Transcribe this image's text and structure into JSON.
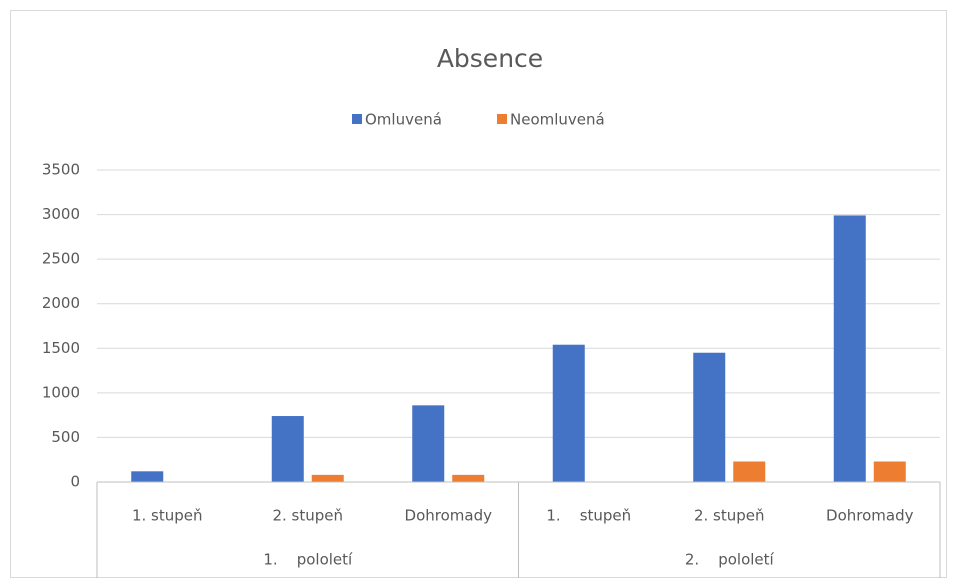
{
  "chart_data": {
    "type": "bar",
    "title": "Absence",
    "categories": [
      "1. stupeň",
      "2. stupeň",
      "Dohromady",
      "1.    stupeň",
      "2. stupeň",
      "Dohromady"
    ],
    "category_groups": [
      "1.    pololetí",
      "2.    pololetí"
    ],
    "series": [
      {
        "name": "Omluvená",
        "color": "#4472c4",
        "values": [
          120,
          740,
          860,
          1540,
          1450,
          2990
        ]
      },
      {
        "name": "Neomluvená",
        "color": "#ed7d31",
        "values": [
          0,
          80,
          80,
          0,
          230,
          230
        ]
      }
    ],
    "ylim": [
      0,
      3500
    ],
    "yticks": [
      0,
      500,
      1000,
      1500,
      2000,
      2500,
      3000,
      3500
    ],
    "grid": true,
    "legend": "top"
  }
}
